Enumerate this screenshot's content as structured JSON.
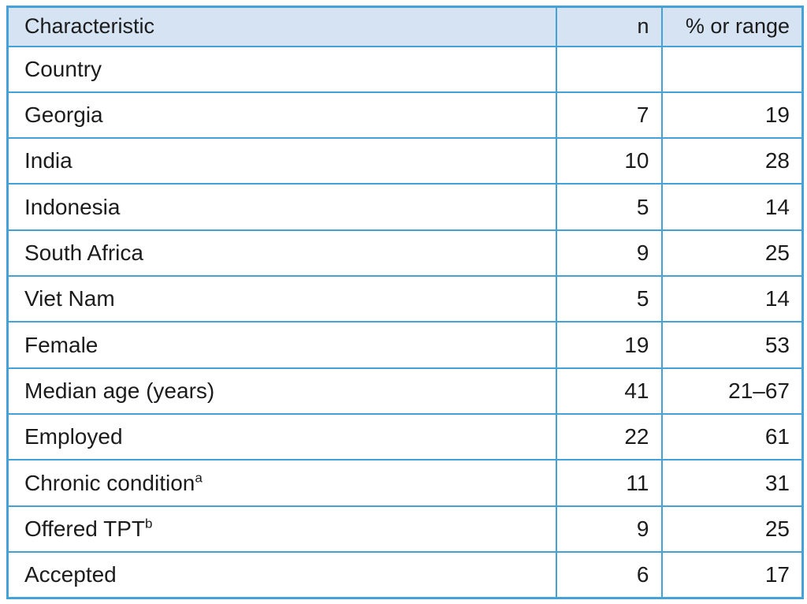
{
  "colors": {
    "border_blue": "#44a2d9",
    "header_background": "#d5e3f2",
    "text": "#1c1c1c"
  },
  "table": {
    "columns": {
      "characteristic": "Characteristic",
      "n": "n",
      "pct_or_range": "% or range"
    },
    "rows": [
      {
        "label": "Country",
        "sup": "",
        "n": "",
        "pct": ""
      },
      {
        "label": "Georgia",
        "sup": "",
        "n": "7",
        "pct": "19"
      },
      {
        "label": "India",
        "sup": "",
        "n": "10",
        "pct": "28"
      },
      {
        "label": "Indonesia",
        "sup": "",
        "n": "5",
        "pct": "14"
      },
      {
        "label": "South Africa",
        "sup": "",
        "n": "9",
        "pct": "25"
      },
      {
        "label": "Viet Nam",
        "sup": "",
        "n": "5",
        "pct": "14"
      },
      {
        "label": "Female",
        "sup": "",
        "n": "19",
        "pct": "53"
      },
      {
        "label": "Median age (years)",
        "sup": "",
        "n": "41",
        "pct": "21–67"
      },
      {
        "label": "Employed",
        "sup": "",
        "n": "22",
        "pct": "61"
      },
      {
        "label": "Chronic condition",
        "sup": "a",
        "n": "11",
        "pct": "31"
      },
      {
        "label": "Offered TPT",
        "sup": "b",
        "n": "9",
        "pct": "25"
      },
      {
        "label": "Accepted",
        "sup": "",
        "n": "6",
        "pct": "17"
      }
    ]
  }
}
